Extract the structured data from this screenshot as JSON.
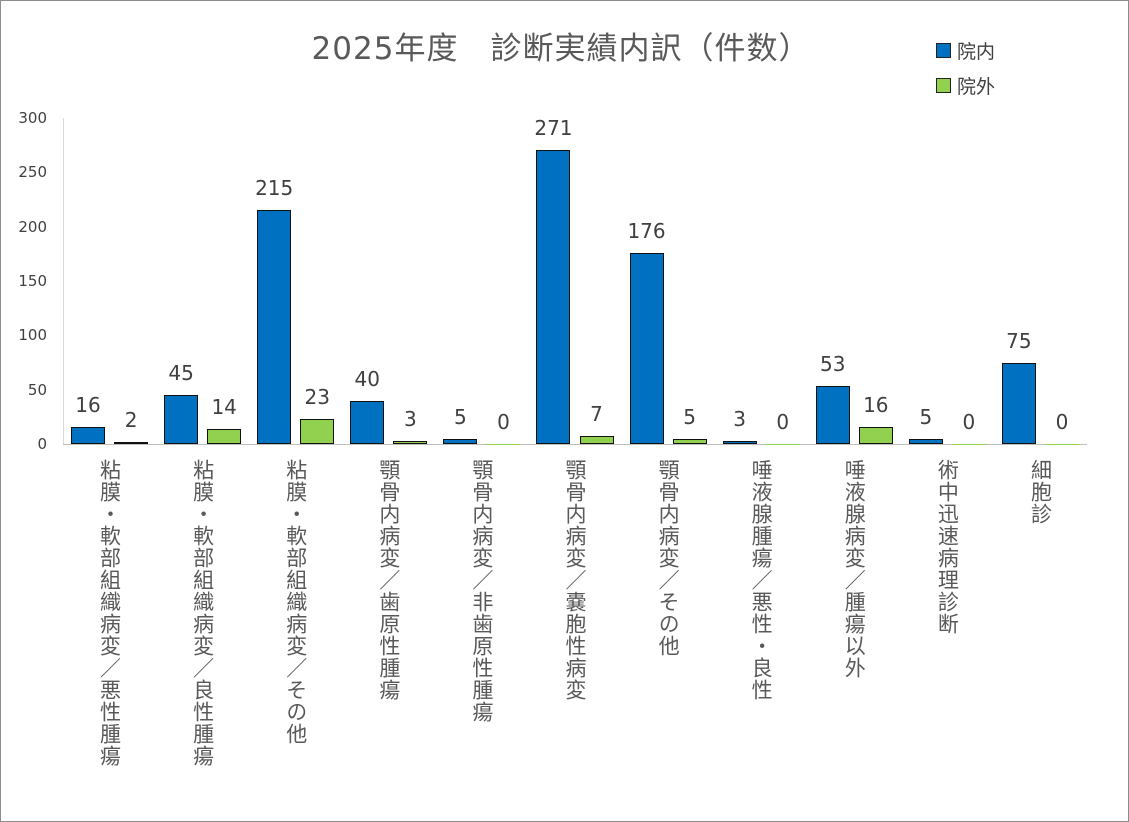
{
  "chart_data": {
    "type": "bar",
    "title": "2025年度　診断実績内訳（件数）",
    "categories": [
      "粘膜・軟部組織病変／悪性腫瘍",
      "粘膜・軟部組織病変／良性腫瘍",
      "粘膜・軟部組織病変／その他",
      "顎骨内病変／歯原性腫瘍",
      "顎骨内病変／非歯原性腫瘍",
      "顎骨内病変／嚢胞性病変",
      "顎骨内病変／その他",
      "唾液腺腫瘍／悪性・良性",
      "唾液腺病変／腫瘍以外",
      "術中迅速病理診断",
      "細胞診"
    ],
    "series": [
      {
        "name": "院内",
        "color": "#0070c0",
        "values": [
          16,
          45,
          215,
          40,
          5,
          271,
          176,
          3,
          53,
          5,
          75
        ]
      },
      {
        "name": "院外",
        "color": "#92d050",
        "values": [
          2,
          14,
          23,
          3,
          0,
          7,
          5,
          0,
          16,
          0,
          0
        ]
      }
    ],
    "xlabel": "",
    "ylabel": "",
    "ylim": [
      0,
      300
    ],
    "yticks": [
      "0",
      "50",
      "100",
      "150",
      "200",
      "250",
      "300"
    ],
    "grid": false,
    "legend": "top-right",
    "data_labels": true
  }
}
